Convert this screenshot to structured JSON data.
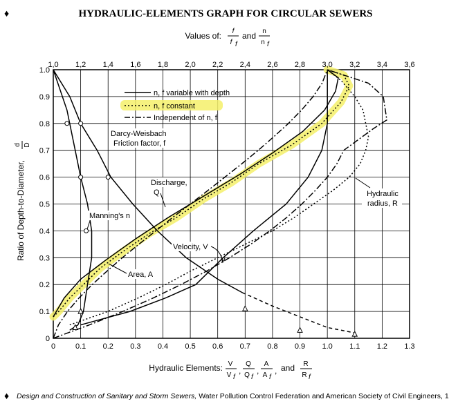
{
  "page": {
    "bullet": "♦",
    "title": "HYDRAULIC-ELEMENTS GRAPH FOR CIRCULAR SEWERS",
    "citation_bullet": "♦",
    "citation_italic": "Design and Construction of Sanitary and Storm Sewers,",
    "citation_rest": " Water Pollution Control Federation and American Society of Civil Engineers, 1970."
  },
  "colors": {
    "ink": "#000000",
    "highlight": "#f4f06a",
    "grid": "#000000",
    "background": "#ffffff"
  },
  "chart_data": {
    "type": "line",
    "title": "HYDRAULIC-ELEMENTS GRAPH FOR CIRCULAR SEWERS",
    "top_axis": {
      "label_prefix": "Values of:",
      "frac1_num": "f",
      "frac1_den": "f",
      "frac1_den_sub": "f",
      "and": "and",
      "frac2_num": "n",
      "frac2_den": "n",
      "frac2_den_sub": "f",
      "ticks": [
        "1,0",
        "1,2",
        "1,4",
        "1,6",
        "1,8",
        "2,0",
        "2,2",
        "2,4",
        "2,6",
        "2,8",
        "3,0",
        "3,2",
        "3,4",
        "3,6"
      ],
      "range": [
        1.0,
        3.6
      ]
    },
    "xaxis": {
      "label_prefix": "Hydraulic Elements:",
      "fracs": [
        {
          "num": "V",
          "den": "V",
          "sub": "f"
        },
        {
          "num": "Q",
          "den": "Q",
          "sub": "f"
        },
        {
          "num": "A",
          "den": "A",
          "sub": "f"
        },
        {
          "num": "R",
          "den": "R",
          "sub": "f"
        }
      ],
      "and": "and",
      "ticks": [
        "0",
        "0.1",
        "0.2",
        "0.3",
        "0.4",
        "0.5",
        "0.6",
        "0.7",
        "0.8",
        "0.9",
        "1.0",
        "1.1",
        "1.2",
        "1.3"
      ],
      "range": [
        0,
        1.3
      ]
    },
    "yaxis": {
      "label": "Ratio of Depth-to-Diameter,",
      "frac_num": "d",
      "frac_den": "D",
      "ticks": [
        "0",
        "0.1",
        "0.2",
        "0.3",
        "0.4",
        "0.5",
        "0.6",
        "0.7",
        "0.8",
        "0.9",
        "1.0"
      ],
      "range": [
        0,
        1.0
      ]
    },
    "grid": true,
    "legend": {
      "placement": "top-center",
      "entries": [
        {
          "label": "n, f variable with depth",
          "style": "solid"
        },
        {
          "label": "n, f constant",
          "style": "dotted",
          "highlighted": true
        },
        {
          "label": "Independent of n, f",
          "style": "dashdot"
        }
      ]
    },
    "annotations": {
      "darcy_line1": "Darcy-Weisbach",
      "darcy_line2": "Friction factor, f",
      "manning": "Manning's n",
      "discharge_line1": "Discharge,",
      "discharge_line2": "Q",
      "velocity": "Velocity, V",
      "area": "Area, A",
      "radius_line1": "Hydraulic",
      "radius_line2": "radius, R"
    },
    "series": [
      {
        "name": "Area, A",
        "style": "dashdot",
        "axis": "bottom",
        "points": [
          [
            0,
            0
          ],
          [
            0.019,
            0.05
          ],
          [
            0.052,
            0.1
          ],
          [
            0.094,
            0.15
          ],
          [
            0.142,
            0.2
          ],
          [
            0.196,
            0.25
          ],
          [
            0.252,
            0.3
          ],
          [
            0.312,
            0.35
          ],
          [
            0.374,
            0.4
          ],
          [
            0.436,
            0.45
          ],
          [
            0.5,
            0.5
          ],
          [
            0.564,
            0.55
          ],
          [
            0.626,
            0.6
          ],
          [
            0.688,
            0.65
          ],
          [
            0.748,
            0.7
          ],
          [
            0.804,
            0.75
          ],
          [
            0.858,
            0.8
          ],
          [
            0.906,
            0.85
          ],
          [
            0.948,
            0.9
          ],
          [
            0.981,
            0.95
          ],
          [
            1.0,
            1.0
          ]
        ]
      },
      {
        "name": "Hydraulic radius, R",
        "style": "dashdot",
        "axis": "bottom",
        "points": [
          [
            0,
            0
          ],
          [
            0.132,
            0.05
          ],
          [
            0.254,
            0.1
          ],
          [
            0.365,
            0.15
          ],
          [
            0.466,
            0.2
          ],
          [
            0.559,
            0.25
          ],
          [
            0.643,
            0.3
          ],
          [
            0.72,
            0.35
          ],
          [
            0.79,
            0.4
          ],
          [
            0.852,
            0.45
          ],
          [
            0.907,
            0.5
          ],
          [
            0.956,
            0.55
          ],
          [
            1.0,
            0.6
          ],
          [
            1.035,
            0.65
          ],
          [
            1.06,
            0.7
          ],
          [
            1.167,
            0.78
          ],
          [
            1.217,
            0.813
          ],
          [
            1.204,
            0.9
          ],
          [
            1.15,
            0.95
          ],
          [
            1.0,
            1.0
          ]
        ]
      },
      {
        "name": "Discharge, Q (n, f constant)",
        "style": "dotted",
        "axis": "bottom",
        "highlighted": true,
        "points": [
          [
            0.0,
            0.08
          ],
          [
            0.02,
            0.1
          ],
          [
            0.06,
            0.15
          ],
          [
            0.11,
            0.2
          ],
          [
            0.17,
            0.26
          ],
          [
            0.25,
            0.32
          ],
          [
            0.35,
            0.39
          ],
          [
            0.45,
            0.45
          ],
          [
            0.55,
            0.52
          ],
          [
            0.65,
            0.58
          ],
          [
            0.75,
            0.65
          ],
          [
            0.87,
            0.72
          ],
          [
            0.98,
            0.8
          ],
          [
            1.05,
            0.88
          ],
          [
            1.08,
            0.94
          ],
          [
            1.06,
            0.98
          ],
          [
            1.0,
            1.0
          ]
        ]
      },
      {
        "name": "Velocity, V (n, f constant)",
        "style": "dotted",
        "axis": "bottom",
        "points": [
          [
            0.06,
            0.05
          ],
          [
            0.2,
            0.1
          ],
          [
            0.31,
            0.15
          ],
          [
            0.41,
            0.2
          ],
          [
            0.5,
            0.25
          ],
          [
            0.6,
            0.3
          ],
          [
            0.7,
            0.35
          ],
          [
            0.8,
            0.4
          ],
          [
            0.88,
            0.45
          ],
          [
            0.95,
            0.5
          ],
          [
            1.02,
            0.55
          ],
          [
            1.08,
            0.6
          ],
          [
            1.12,
            0.65
          ],
          [
            1.14,
            0.7
          ],
          [
            1.15,
            0.75
          ],
          [
            1.14,
            0.8
          ],
          [
            1.13,
            0.85
          ],
          [
            1.1,
            0.9
          ],
          [
            1.05,
            0.96
          ],
          [
            1.0,
            1.0
          ]
        ]
      },
      {
        "name": "Discharge, Q (n, f variable with depth)",
        "style": "solid",
        "axis": "bottom",
        "points": [
          [
            0.0,
            0.08
          ],
          [
            0.04,
            0.15
          ],
          [
            0.1,
            0.22
          ],
          [
            0.19,
            0.29
          ],
          [
            0.3,
            0.37
          ],
          [
            0.42,
            0.45
          ],
          [
            0.55,
            0.53
          ],
          [
            0.68,
            0.61
          ],
          [
            0.8,
            0.69
          ],
          [
            0.91,
            0.77
          ],
          [
            0.99,
            0.85
          ],
          [
            1.03,
            0.92
          ],
          [
            1.04,
            0.97
          ],
          [
            1.0,
            1.0
          ]
        ]
      },
      {
        "name": "Velocity, V (n, f variable with depth)",
        "style": "solid",
        "axis": "bottom",
        "points": [
          [
            0.1,
            0.05
          ],
          [
            0.28,
            0.1
          ],
          [
            0.41,
            0.15
          ],
          [
            0.52,
            0.2
          ],
          [
            0.62,
            0.3
          ],
          [
            0.73,
            0.4
          ],
          [
            0.85,
            0.5
          ],
          [
            0.93,
            0.6
          ],
          [
            0.98,
            0.7
          ],
          [
            1.0,
            0.8
          ],
          [
            1.0,
            0.9
          ],
          [
            1.0,
            1.0
          ]
        ]
      },
      {
        "name": "Darcy-Weisbach Friction factor, f",
        "style": "solid",
        "axis": "top",
        "points": [
          [
            1.0,
            1.0
          ],
          [
            1.12,
            0.9
          ],
          [
            1.2,
            0.8
          ],
          [
            1.32,
            0.7
          ],
          [
            1.42,
            0.6
          ],
          [
            1.58,
            0.5
          ],
          [
            1.76,
            0.4
          ],
          [
            1.97,
            0.3
          ],
          [
            2.2,
            0.22
          ],
          [
            2.38,
            0.17
          ]
        ]
      },
      {
        "name": "Manning's n",
        "style": "solid",
        "axis": "top",
        "points": [
          [
            1.0,
            1.0
          ],
          [
            1.1,
            0.85
          ],
          [
            1.16,
            0.7
          ],
          [
            1.2,
            0.6
          ],
          [
            1.25,
            0.5
          ],
          [
            1.28,
            0.4
          ],
          [
            1.28,
            0.3
          ],
          [
            1.25,
            0.2
          ],
          [
            1.22,
            0.1
          ],
          [
            1.18,
            0.05
          ],
          [
            1.12,
            0.03
          ]
        ]
      },
      {
        "name": "Darcy-Weisbach Friction factor, f (extension)",
        "style": "dashed",
        "axis": "top",
        "points": [
          [
            2.38,
            0.17
          ],
          [
            2.6,
            0.12
          ],
          [
            2.8,
            0.08
          ],
          [
            3.0,
            0.04
          ],
          [
            3.2,
            0.02
          ]
        ]
      }
    ],
    "markers": {
      "circles": [
        [
          1.1,
          0.8
        ],
        [
          1.2,
          0.8
        ],
        [
          1.2,
          0.6
        ],
        [
          1.4,
          0.6
        ],
        [
          1.24,
          0.4
        ]
      ],
      "triangles": [
        [
          1.16,
          0.04
        ],
        [
          1.2,
          0.1
        ],
        [
          2.4,
          0.11
        ],
        [
          2.8,
          0.03
        ],
        [
          3.2,
          0.015
        ]
      ],
      "axis": "top"
    }
  }
}
